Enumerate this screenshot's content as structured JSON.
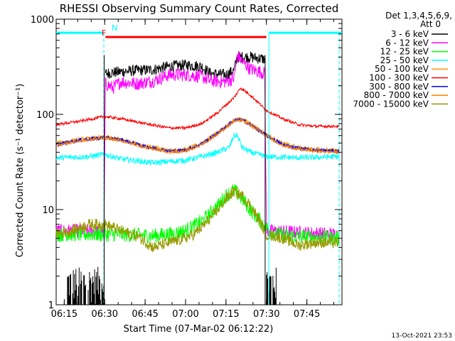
{
  "chart_data": {
    "type": "line",
    "title": "RHESSI Observing Summary Count Rates, Corrected",
    "xlabel": "Start Time (07-Mar-02 06:12:22)",
    "ylabel": "Corrected Count Rate (s⁻¹ detector⁻¹)",
    "yscale": "log",
    "ylim": [
      1,
      1000
    ],
    "xlim": [
      6.2,
      7.967
    ],
    "x_ticks": [
      {
        "t": 6.25,
        "label": "06:15"
      },
      {
        "t": 6.5,
        "label": "06:30"
      },
      {
        "t": 6.75,
        "label": "06:45"
      },
      {
        "t": 7.0,
        "label": "07:00"
      },
      {
        "t": 7.25,
        "label": "07:15"
      },
      {
        "t": 7.5,
        "label": "07:30"
      },
      {
        "t": 7.75,
        "label": "07:45"
      }
    ],
    "y_ticks": [
      {
        "v": 1,
        "label": "1"
      },
      {
        "v": 10,
        "label": "10"
      },
      {
        "v": 100,
        "label": "100"
      },
      {
        "v": 1000,
        "label": "1000"
      }
    ],
    "legend_header": [
      "Det 1,3,4,5,6,9,",
      "Att 0"
    ],
    "legend_placement": "right",
    "annotations": {
      "flare_flag": "F",
      "night_flag": "N"
    },
    "timestamp": "13-Oct-2021 23:53",
    "flare_bar": {
      "start": 6.505,
      "end": 7.5,
      "value": 650,
      "color": "#ff0000"
    },
    "night_bars": [
      {
        "start": 6.2,
        "end": 6.493,
        "value": 720
      },
      {
        "start": 7.515,
        "end": 7.967,
        "value": 720
      }
    ],
    "boundaries": [
      {
        "t": 6.495,
        "color": "#00ffff",
        "style": "dashed"
      },
      {
        "t": 7.515,
        "color": "#00ffff",
        "style": "solid"
      },
      {
        "t": 7.95,
        "color": "#00ffff",
        "style": "dashed"
      },
      {
        "t": 6.497,
        "color": "#000000",
        "style": "solid"
      },
      {
        "t": 7.492,
        "color": "#000000",
        "style": "solid"
      }
    ],
    "series": [
      {
        "name": "3 - 6 keV",
        "color": "#000000",
        "noise": 0.06,
        "points": [
          [
            6.505,
            270
          ],
          [
            6.6,
            280
          ],
          [
            6.7,
            290
          ],
          [
            6.8,
            295
          ],
          [
            6.9,
            320
          ],
          [
            7.0,
            330
          ],
          [
            7.1,
            320
          ],
          [
            7.15,
            270
          ],
          [
            7.25,
            260
          ],
          [
            7.3,
            290
          ],
          [
            7.32,
            400
          ],
          [
            7.4,
            400
          ],
          [
            7.49,
            380
          ]
        ]
      },
      {
        "name": "6 - 12 keV",
        "color": "#ff00ff",
        "noise": 0.07,
        "points": [
          [
            6.2,
            6
          ],
          [
            6.495,
            6
          ],
          [
            6.505,
            210
          ],
          [
            6.55,
            190
          ],
          [
            6.6,
            220
          ],
          [
            6.7,
            210
          ],
          [
            6.8,
            225
          ],
          [
            6.9,
            260
          ],
          [
            7.0,
            260
          ],
          [
            7.1,
            250
          ],
          [
            7.15,
            225
          ],
          [
            7.25,
            220
          ],
          [
            7.3,
            240
          ],
          [
            7.32,
            420
          ],
          [
            7.35,
            360
          ],
          [
            7.4,
            300
          ],
          [
            7.49,
            270
          ],
          [
            7.5,
            6
          ],
          [
            7.95,
            5.5
          ]
        ]
      },
      {
        "name": "12 - 25 keV",
        "color": "#00ff00",
        "noise": 0.08,
        "points": [
          [
            6.2,
            5.5
          ],
          [
            6.5,
            5.5
          ],
          [
            6.6,
            5.5
          ],
          [
            6.8,
            5.3
          ],
          [
            6.9,
            5.5
          ],
          [
            7.0,
            6.0
          ],
          [
            7.1,
            7.5
          ],
          [
            7.15,
            9
          ],
          [
            7.2,
            11
          ],
          [
            7.25,
            14
          ],
          [
            7.3,
            16
          ],
          [
            7.35,
            13
          ],
          [
            7.4,
            10
          ],
          [
            7.45,
            8
          ],
          [
            7.5,
            6.5
          ],
          [
            7.55,
            5.5
          ],
          [
            7.7,
            5.2
          ],
          [
            7.95,
            5
          ]
        ]
      },
      {
        "name": "25 - 50 keV",
        "color": "#00ffff",
        "noise": 0.03,
        "points": [
          [
            6.2,
            35
          ],
          [
            6.4,
            36
          ],
          [
            6.5,
            38
          ],
          [
            6.6,
            34
          ],
          [
            6.8,
            31
          ],
          [
            7.0,
            33
          ],
          [
            7.1,
            36
          ],
          [
            7.2,
            40
          ],
          [
            7.27,
            45
          ],
          [
            7.3,
            60
          ],
          [
            7.32,
            60
          ],
          [
            7.35,
            45
          ],
          [
            7.4,
            40
          ],
          [
            7.5,
            36
          ],
          [
            7.7,
            35
          ],
          [
            7.95,
            36
          ]
        ]
      },
      {
        "name": "50 - 100 keV",
        "color": "#ff9900",
        "noise": 0.02,
        "points": [
          [
            6.2,
            50
          ],
          [
            6.35,
            55
          ],
          [
            6.5,
            58
          ],
          [
            6.6,
            55
          ],
          [
            6.75,
            47
          ],
          [
            6.9,
            42
          ],
          [
            7.0,
            43
          ],
          [
            7.1,
            50
          ],
          [
            7.2,
            65
          ],
          [
            7.3,
            88
          ],
          [
            7.35,
            90
          ],
          [
            7.4,
            80
          ],
          [
            7.5,
            62
          ],
          [
            7.6,
            50
          ],
          [
            7.7,
            45
          ],
          [
            7.8,
            43
          ],
          [
            7.95,
            42
          ]
        ]
      },
      {
        "name": "100 - 300 keV",
        "color": "#ff0000",
        "noise": 0.015,
        "points": [
          [
            6.2,
            78
          ],
          [
            6.35,
            85
          ],
          [
            6.5,
            95
          ],
          [
            6.6,
            90
          ],
          [
            6.75,
            80
          ],
          [
            6.9,
            72
          ],
          [
            7.0,
            72
          ],
          [
            7.1,
            80
          ],
          [
            7.2,
            105
          ],
          [
            7.3,
            150
          ],
          [
            7.34,
            190
          ],
          [
            7.4,
            160
          ],
          [
            7.5,
            110
          ],
          [
            7.6,
            90
          ],
          [
            7.7,
            78
          ],
          [
            7.8,
            75
          ],
          [
            7.95,
            75
          ]
        ]
      },
      {
        "name": "300 - 800 keV",
        "color": "#0000ff",
        "noise": 0.02,
        "points": [
          [
            6.2,
            48
          ],
          [
            6.35,
            54
          ],
          [
            6.5,
            57
          ],
          [
            6.6,
            54
          ],
          [
            6.75,
            46
          ],
          [
            6.9,
            41
          ],
          [
            7.0,
            42
          ],
          [
            7.1,
            49
          ],
          [
            7.2,
            64
          ],
          [
            7.3,
            86
          ],
          [
            7.35,
            88
          ],
          [
            7.4,
            78
          ],
          [
            7.5,
            60
          ],
          [
            7.6,
            48
          ],
          [
            7.7,
            44
          ],
          [
            7.8,
            42
          ],
          [
            7.95,
            41
          ]
        ]
      },
      {
        "name": "800 - 7000 keV",
        "color": "#ff7f00",
        "noise": 0.015,
        "points": [
          [
            6.2,
            47
          ],
          [
            6.35,
            53
          ],
          [
            6.5,
            56
          ],
          [
            6.6,
            53
          ],
          [
            6.75,
            45
          ],
          [
            6.9,
            40
          ],
          [
            7.0,
            41
          ],
          [
            7.1,
            48
          ],
          [
            7.2,
            62
          ],
          [
            7.3,
            85
          ],
          [
            7.35,
            87
          ],
          [
            7.4,
            77
          ],
          [
            7.5,
            59
          ],
          [
            7.6,
            47
          ],
          [
            7.7,
            43
          ],
          [
            7.8,
            41
          ],
          [
            7.95,
            40
          ]
        ]
      },
      {
        "name": "7000 - 15000 keV",
        "color": "#999900",
        "noise": 0.06,
        "points": [
          [
            6.2,
            5.5
          ],
          [
            6.3,
            6
          ],
          [
            6.4,
            7
          ],
          [
            6.5,
            7
          ],
          [
            6.6,
            6
          ],
          [
            6.7,
            5.3
          ],
          [
            6.8,
            4
          ],
          [
            6.9,
            4.5
          ],
          [
            7.0,
            5
          ],
          [
            7.05,
            5.5
          ],
          [
            7.1,
            6.5
          ],
          [
            7.15,
            8
          ],
          [
            7.2,
            10
          ],
          [
            7.25,
            13
          ],
          [
            7.3,
            15.5
          ],
          [
            7.35,
            14
          ],
          [
            7.4,
            11
          ],
          [
            7.45,
            8
          ],
          [
            7.5,
            5.5
          ],
          [
            7.6,
            5
          ],
          [
            7.7,
            4.2
          ],
          [
            7.8,
            4.5
          ],
          [
            7.95,
            4.5
          ]
        ]
      }
    ],
    "low_counts": {
      "color": "#000000",
      "value": 2.5,
      "spans": [
        [
          6.27,
          6.5
        ],
        [
          7.5,
          7.56
        ]
      ]
    }
  }
}
